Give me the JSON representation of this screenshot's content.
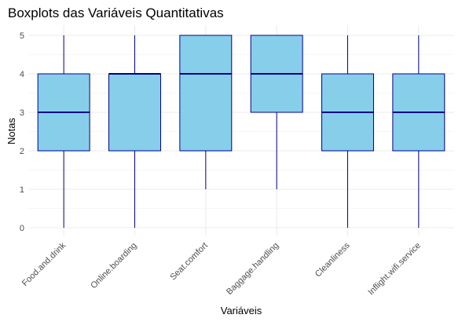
{
  "chart_data": {
    "type": "boxplot",
    "title": "Boxplots das Variáveis Quantitativas",
    "xlabel": "Variáveis",
    "ylabel": "Notas",
    "ylim": [
      0,
      5
    ],
    "yticks": [
      "0",
      "1",
      "2",
      "3",
      "4",
      "5"
    ],
    "grid": true,
    "colors": {
      "box_fill": "#87ceeb",
      "box_stroke": "#00008b"
    },
    "categories": [
      "Food.and.drink",
      "Online.boarding",
      "Seat.comfort",
      "Baggage.handling",
      "Cleanliness",
      "Inflight.wifi.service"
    ],
    "boxes": [
      {
        "min": 0,
        "q1": 2,
        "median": 3,
        "q3": 4,
        "max": 5
      },
      {
        "min": 0,
        "q1": 2,
        "median": 4,
        "q3": 4,
        "max": 5
      },
      {
        "min": 1,
        "q1": 2,
        "median": 4,
        "q3": 5,
        "max": 5
      },
      {
        "min": 1,
        "q1": 3,
        "median": 4,
        "q3": 5,
        "max": 5
      },
      {
        "min": 0,
        "q1": 2,
        "median": 3,
        "q3": 4,
        "max": 5
      },
      {
        "min": 0,
        "q1": 2,
        "median": 3,
        "q3": 4,
        "max": 5
      }
    ]
  }
}
